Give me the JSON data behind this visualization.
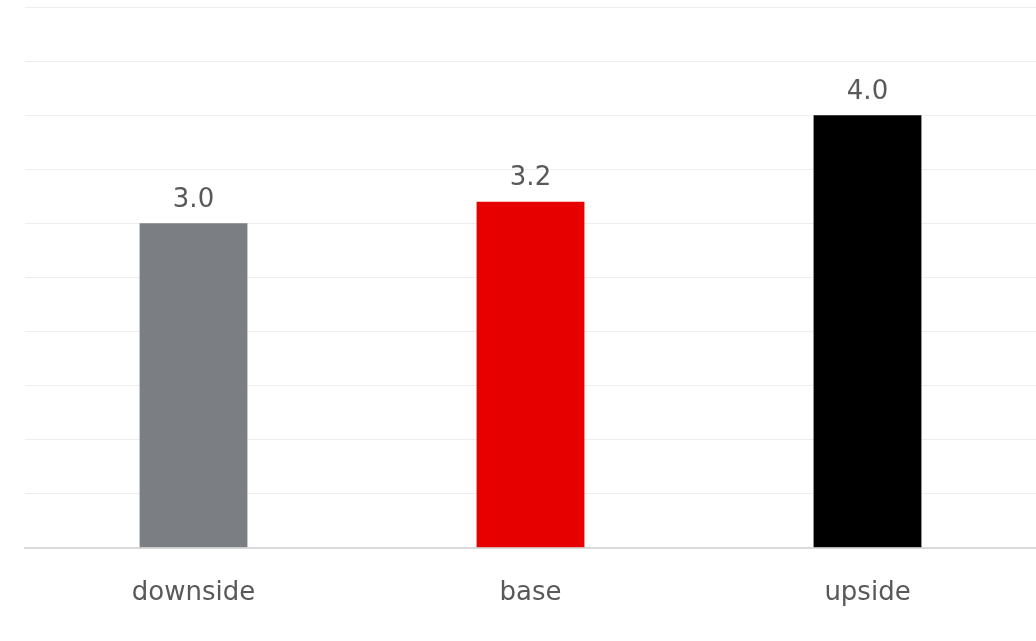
{
  "chart_data": {
    "type": "bar",
    "categories": [
      "downside",
      "base",
      "upside"
    ],
    "values": [
      3.0,
      3.2,
      4.0
    ],
    "value_labels": [
      "3.0",
      "3.2",
      "4.0"
    ],
    "colors": [
      "#7b7f83",
      "#e60000",
      "#000000"
    ],
    "ylim": [
      0,
      5
    ],
    "yticks": [
      {
        "value": 0,
        "label": null
      },
      {
        "value": 0.5,
        "label": null
      },
      {
        "value": 1,
        "label": null
      },
      {
        "value": 1.5,
        "label": null
      },
      {
        "value": 2,
        "label": null
      },
      {
        "value": 2.5,
        "label": null
      },
      {
        "value": 3,
        "label": null
      },
      {
        "value": 3.5,
        "label": null
      },
      {
        "value": 4,
        "label": null
      },
      {
        "value": 4.5,
        "label": null
      },
      {
        "value": 5,
        "label": null
      }
    ],
    "tick_labels": "x",
    "grid": "y",
    "legend": false
  }
}
